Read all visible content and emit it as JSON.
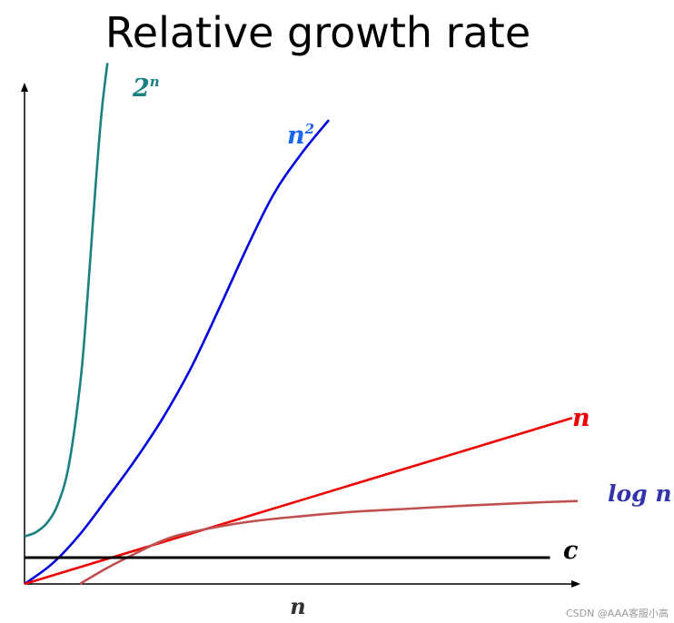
{
  "chart_data": {
    "type": "line",
    "title": "Relative growth rate",
    "xlabel": "n",
    "ylabel": "",
    "xlim": [
      0,
      100
    ],
    "ylim": [
      0,
      100
    ],
    "grid": false,
    "legend": "none",
    "series": [
      {
        "name": "2",
        "superscript": "n",
        "color": "#1a8080",
        "x": [
          0,
          2,
          4,
          6,
          8,
          10,
          11,
          12,
          13,
          14,
          15
        ],
        "y": [
          9.4,
          10.2,
          12.0,
          15.7,
          23.4,
          39.0,
          51.0,
          66.0,
          81.0,
          94.0,
          103.0
        ]
      },
      {
        "name": "n",
        "superscript": "2",
        "color": "#0000dd",
        "x": [
          0,
          5,
          10,
          15,
          20,
          25,
          30,
          35,
          40,
          45,
          50,
          55
        ],
        "y": [
          0.0,
          4.0,
          9.8,
          17.0,
          24.5,
          32.8,
          42.5,
          54.0,
          66.0,
          77.0,
          85.0,
          91.7
        ]
      },
      {
        "name": "n",
        "superscript": "",
        "color": "#ee0000",
        "x": [
          0,
          99
        ],
        "y": [
          0.0,
          32.8
        ]
      },
      {
        "name": "log n",
        "superscript": "",
        "color": "#c05050",
        "x": [
          10,
          15,
          20,
          25,
          30,
          40,
          50,
          60,
          70,
          80,
          90,
          100
        ],
        "y": [
          0.0,
          3.2,
          6.0,
          8.6,
          10.2,
          12.2,
          13.4,
          14.3,
          14.9,
          15.5,
          16.0,
          16.4
        ]
      },
      {
        "name": "c",
        "superscript": "",
        "color": "#000000",
        "x": [
          0,
          95
        ],
        "y": [
          5.2,
          5.2
        ]
      }
    ]
  },
  "watermark": "CSDN @AAA客服小高"
}
